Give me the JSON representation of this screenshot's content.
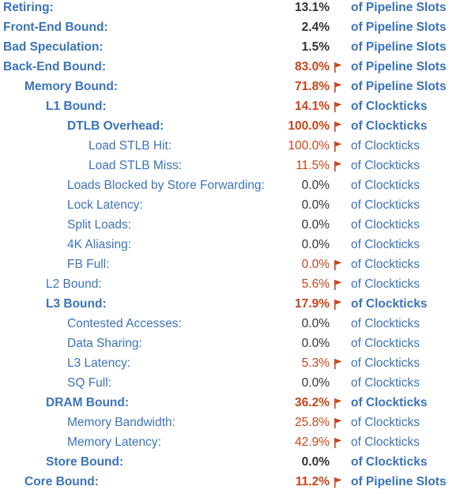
{
  "colors": {
    "link": "#3b73b9",
    "warning": "#c8451b",
    "normal_value": "#333333"
  },
  "flag_icon": "flag-icon",
  "metrics": [
    {
      "label": "Retiring:",
      "value": "13.1%",
      "unit": "of Pipeline Slots",
      "level": 0,
      "bold": true,
      "flagged": false
    },
    {
      "label": "Front-End Bound:",
      "value": "2.4%",
      "unit": "of Pipeline Slots",
      "level": 0,
      "bold": true,
      "flagged": false
    },
    {
      "label": "Bad Speculation:",
      "value": "1.5%",
      "unit": "of Pipeline Slots",
      "level": 0,
      "bold": true,
      "flagged": false
    },
    {
      "label": "Back-End Bound:",
      "value": "83.0%",
      "unit": "of Pipeline Slots",
      "level": 0,
      "bold": true,
      "flagged": true
    },
    {
      "label": "Memory Bound:",
      "value": "71.8%",
      "unit": "of Pipeline Slots",
      "level": 1,
      "bold": true,
      "flagged": true
    },
    {
      "label": "L1 Bound:",
      "value": "14.1%",
      "unit": "of Clockticks",
      "level": 2,
      "bold": true,
      "flagged": true
    },
    {
      "label": "DTLB Overhead:",
      "value": "100.0%",
      "unit": "of Clockticks",
      "level": 3,
      "bold": true,
      "flagged": true
    },
    {
      "label": "Load STLB Hit:",
      "value": "100.0%",
      "unit": "of Clockticks",
      "level": 4,
      "bold": false,
      "flagged": true
    },
    {
      "label": "Load STLB Miss:",
      "value": "11.5%",
      "unit": "of Clockticks",
      "level": 4,
      "bold": false,
      "flagged": true
    },
    {
      "label": "Loads Blocked by Store Forwarding:",
      "value": "0.0%",
      "unit": "of Clockticks",
      "level": 3,
      "bold": false,
      "flagged": false
    },
    {
      "label": "Lock Latency:",
      "value": "0.0%",
      "unit": "of Clockticks",
      "level": 3,
      "bold": false,
      "flagged": false
    },
    {
      "label": "Split Loads:",
      "value": "0.0%",
      "unit": "of Clockticks",
      "level": 3,
      "bold": false,
      "flagged": false
    },
    {
      "label": "4K Aliasing:",
      "value": "0.0%",
      "unit": "of Clockticks",
      "level": 3,
      "bold": false,
      "flagged": false
    },
    {
      "label": "FB Full:",
      "value": "0.0%",
      "unit": "of Clockticks",
      "level": 3,
      "bold": false,
      "flagged": true
    },
    {
      "label": "L2 Bound:",
      "value": "5.6%",
      "unit": "of Clockticks",
      "level": 2,
      "bold": false,
      "flagged": true
    },
    {
      "label": "L3 Bound:",
      "value": "17.9%",
      "unit": "of Clockticks",
      "level": 2,
      "bold": true,
      "flagged": true
    },
    {
      "label": "Contested Accesses:",
      "value": "0.0%",
      "unit": "of Clockticks",
      "level": 3,
      "bold": false,
      "flagged": false
    },
    {
      "label": "Data Sharing:",
      "value": "0.0%",
      "unit": "of Clockticks",
      "level": 3,
      "bold": false,
      "flagged": false
    },
    {
      "label": "L3 Latency:",
      "value": "5.3%",
      "unit": "of Clockticks",
      "level": 3,
      "bold": false,
      "flagged": true
    },
    {
      "label": "SQ Full:",
      "value": "0.0%",
      "unit": "of Clockticks",
      "level": 3,
      "bold": false,
      "flagged": false
    },
    {
      "label": "DRAM Bound:",
      "value": "36.2%",
      "unit": "of Clockticks",
      "level": 2,
      "bold": true,
      "flagged": true
    },
    {
      "label": "Memory Bandwidth:",
      "value": "25.8%",
      "unit": "of Clockticks",
      "level": 3,
      "bold": false,
      "flagged": true
    },
    {
      "label": "Memory Latency:",
      "value": "42.9%",
      "unit": "of Clockticks",
      "level": 3,
      "bold": false,
      "flagged": true
    },
    {
      "label": "Store Bound:",
      "value": "0.0%",
      "unit": "of Clockticks",
      "level": 2,
      "bold": true,
      "flagged": false
    },
    {
      "label": "Core Bound:",
      "value": "11.2%",
      "unit": "of Pipeline Slots",
      "level": 1,
      "bold": true,
      "flagged": true
    }
  ]
}
